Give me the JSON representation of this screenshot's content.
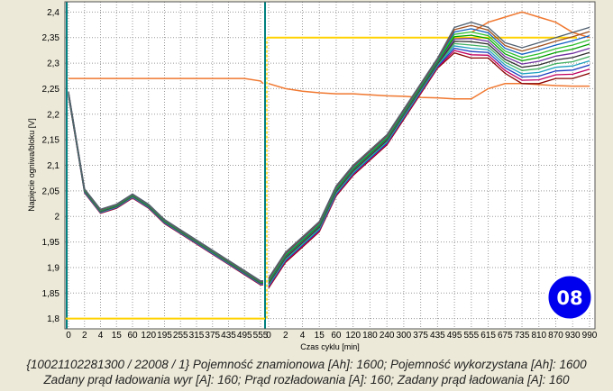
{
  "chart_data": {
    "type": "line",
    "title": "",
    "xlabel": "Czas cyklu [min]",
    "ylabel": "Napięcie ogniwa/bloku [V]",
    "ylim": [
      1.78,
      2.42
    ],
    "yticks": [
      "1,8",
      "1,85",
      "1,9",
      "1,95",
      "2",
      "2,05",
      "2,1",
      "2,15",
      "2,2",
      "2,25",
      "2,3",
      "2,35",
      "2,4"
    ],
    "ytick_values": [
      1.8,
      1.85,
      1.9,
      1.95,
      2.0,
      2.05,
      2.1,
      2.15,
      2.2,
      2.25,
      2.3,
      2.35,
      2.4
    ],
    "discharge_xticks": [
      "0",
      "2",
      "4",
      "15",
      "60",
      "120",
      "195",
      "255",
      "315",
      "375",
      "435",
      "495",
      "555"
    ],
    "charge_xticks": [
      "0",
      "2",
      "4",
      "15",
      "60",
      "120",
      "180",
      "240",
      "300",
      "375",
      "435",
      "495",
      "555",
      "615",
      "675",
      "735",
      "810",
      "870",
      "930",
      "990"
    ],
    "grid": true,
    "discharge_profile": {
      "time_min": [
        0,
        2,
        4,
        15,
        60,
        120,
        195,
        255,
        315,
        375,
        435,
        495,
        555,
        590
      ],
      "voltage": [
        2.24,
        2.05,
        2.01,
        2.02,
        2.04,
        2.02,
        1.99,
        1.97,
        1.95,
        1.93,
        1.91,
        1.89,
        1.87,
        1.87
      ]
    },
    "charge_profile": {
      "time_min": [
        0,
        2,
        4,
        15,
        60,
        120,
        180,
        240,
        300,
        375,
        435,
        495,
        555,
        615,
        675,
        735,
        810,
        870,
        930,
        990
      ],
      "voltage_mean": [
        1.87,
        1.92,
        1.95,
        1.98,
        2.05,
        2.09,
        2.12,
        2.15,
        2.2,
        2.25,
        2.3,
        2.33,
        2.35,
        2.34,
        2.31,
        2.27,
        2.27,
        2.28,
        2.29,
        2.3
      ],
      "voltage_max": [
        1.88,
        1.93,
        1.96,
        1.99,
        2.06,
        2.1,
        2.13,
        2.16,
        2.21,
        2.26,
        2.31,
        2.37,
        2.38,
        2.37,
        2.34,
        2.33,
        2.34,
        2.35,
        2.36,
        2.37
      ],
      "voltage_min": [
        1.86,
        1.91,
        1.94,
        1.97,
        2.04,
        2.08,
        2.11,
        2.14,
        2.19,
        2.24,
        2.29,
        2.32,
        2.31,
        2.31,
        2.28,
        2.26,
        2.26,
        2.27,
        2.27,
        2.28
      ]
    },
    "current_trace": {
      "discharge": [
        2.27,
        2.27,
        2.27,
        2.27,
        2.27,
        2.27,
        2.27,
        2.27,
        2.27,
        2.27,
        2.27,
        2.27,
        2.265,
        2.26
      ],
      "charge": [
        2.26,
        2.25,
        2.245,
        2.242,
        2.24,
        2.24,
        2.238,
        2.236,
        2.235,
        2.233,
        2.232,
        2.23,
        2.23,
        2.25,
        2.26,
        2.26,
        2.258,
        2.256,
        2.255,
        2.255
      ]
    },
    "temperature_trace": {
      "charge_time_min": [
        555,
        615,
        675,
        735,
        810,
        870,
        930,
        990
      ],
      "value": [
        2.36,
        2.38,
        2.39,
        2.4,
        2.39,
        2.38,
        2.36,
        2.35
      ]
    },
    "mode_signal": {
      "discharge_level": 1.8,
      "charge_level": 2.35
    }
  },
  "badge": {
    "text": "08"
  },
  "caption": {
    "line1": "{10021102281300 / 22008 / 1} Pojemność znamionowa [Ah]: 1600;  Pojemność wykorzystana [Ah]: 1600",
    "line2": "Zadany prąd ładowania wyr [A]: 160;  Prąd rozładowania [A]: 160;  Zadany prąd ładowania [A]: 160"
  },
  "colors": {
    "plot_background": "#ffffff",
    "window_background": "#ece9d8",
    "grid": "#9a9a9a",
    "separator_line": "#008080",
    "mode_signal": "#ffd200",
    "current_trace": "#f07830",
    "badge": "#0000ee",
    "cell_lines": [
      "#8b0000",
      "#c00060",
      "#2040c0",
      "#20a0c0",
      "#40b060",
      "#303030",
      "#7030a0",
      "#00a000",
      "#30c030",
      "#1060c0",
      "#a05020",
      "#506070"
    ]
  }
}
